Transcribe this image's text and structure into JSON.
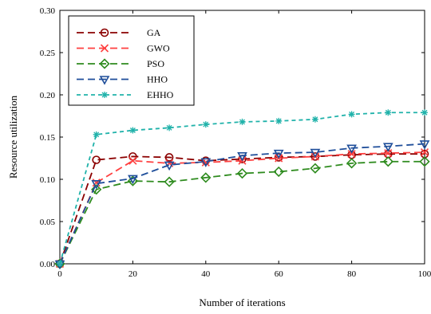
{
  "chart_data": {
    "type": "line",
    "xlabel": "Number of iterations",
    "ylabel": "Resource utilization",
    "xlim": [
      0,
      100
    ],
    "ylim": [
      0,
      0.3
    ],
    "x_ticks": [
      "0",
      "20",
      "40",
      "60",
      "80",
      "100"
    ],
    "y_ticks": [
      "0.00",
      "0.05",
      "0.10",
      "0.15",
      "0.20",
      "0.25",
      "0.30"
    ],
    "grid": false,
    "legend_position": "top-left",
    "x": [
      0,
      10,
      20,
      30,
      40,
      50,
      60,
      70,
      80,
      90,
      100
    ],
    "series": [
      {
        "name": "GA",
        "color": "#8B0000",
        "marker": "circle",
        "dash": "long-dash",
        "values": [
          0.0,
          0.123,
          0.127,
          0.126,
          0.122,
          0.124,
          0.126,
          0.127,
          0.129,
          0.13,
          0.13
        ]
      },
      {
        "name": "GWO",
        "color": "#FF4040",
        "marker": "x",
        "dash": "long-dash",
        "values": [
          0.0,
          0.096,
          0.122,
          0.119,
          0.12,
          0.122,
          0.125,
          0.127,
          0.13,
          0.131,
          0.132
        ]
      },
      {
        "name": "PSO",
        "color": "#2E8B1E",
        "marker": "diamond",
        "dash": "long-dash",
        "values": [
          0.0,
          0.088,
          0.098,
          0.097,
          0.102,
          0.107,
          0.109,
          0.113,
          0.119,
          0.121,
          0.121
        ]
      },
      {
        "name": "HHO",
        "color": "#1F4E9A",
        "marker": "triangle-down",
        "dash": "long-dash",
        "values": [
          0.0,
          0.095,
          0.101,
          0.117,
          0.121,
          0.128,
          0.131,
          0.132,
          0.137,
          0.139,
          0.142
        ]
      },
      {
        "name": "EHHO",
        "color": "#20B2AA",
        "marker": "star",
        "dash": "short-dash",
        "values": [
          0.0,
          0.153,
          0.158,
          0.161,
          0.165,
          0.168,
          0.169,
          0.171,
          0.177,
          0.179,
          0.179
        ]
      }
    ]
  }
}
